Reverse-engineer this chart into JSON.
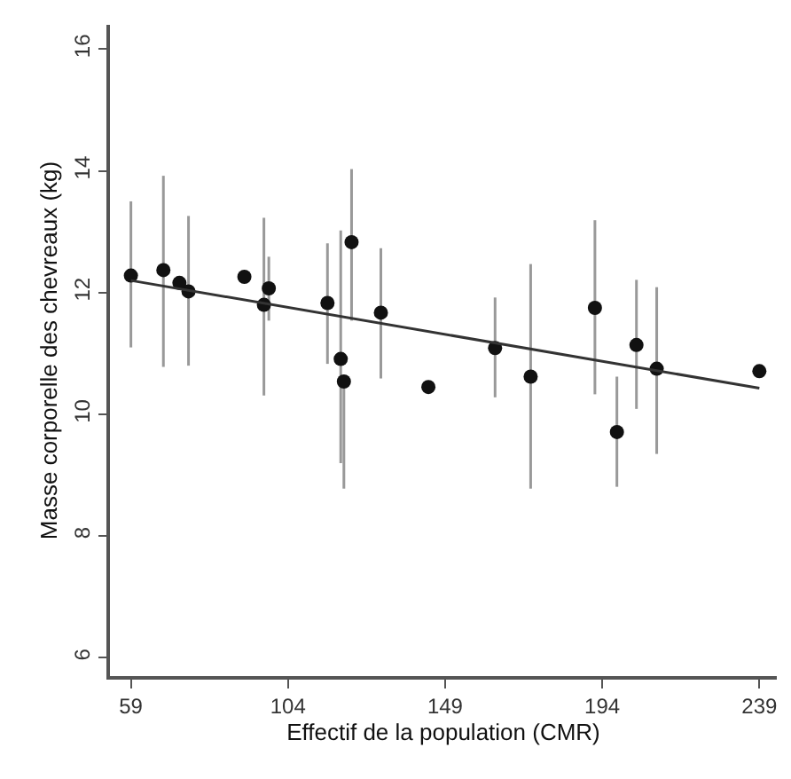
{
  "chart_data": {
    "type": "scatter",
    "xlabel": "Effectif de la population (CMR)",
    "ylabel": "Masse corporelle des chevreaux (kg)",
    "xlim": [
      53,
      244
    ],
    "ylim": [
      5.7,
      16.4
    ],
    "xticks": [
      59,
      104,
      149,
      194,
      239
    ],
    "yticks": [
      6,
      8,
      10,
      12,
      14,
      16
    ],
    "marker": "circle",
    "series": [
      {
        "color": "#111111",
        "x": [
          59,
          68.3,
          72.9,
          75.5,
          91.5,
          97.1,
          98.5,
          115.3,
          119.1,
          120,
          122.2,
          130.6,
          144.2,
          163.3,
          173.5,
          191.9,
          198.2,
          203.8,
          209.6,
          239
        ],
        "values": [
          12.28,
          12.37,
          12.16,
          12.02,
          12.26,
          11.8,
          12.07,
          11.83,
          10.91,
          10.54,
          12.83,
          11.67,
          10.45,
          11.09,
          10.62,
          11.75,
          9.71,
          11.14,
          10.75,
          10.71
        ],
        "errors": [
          [
            11.1,
            13.5
          ],
          [
            10.78,
            13.92
          ],
          null,
          [
            10.8,
            13.26
          ],
          null,
          [
            10.31,
            13.23
          ],
          [
            11.54,
            12.59
          ],
          [
            10.83,
            12.81
          ],
          [
            9.2,
            13.02
          ],
          [
            8.78,
            10.54
          ],
          [
            11.54,
            14.03
          ],
          [
            10.59,
            12.73
          ],
          null,
          [
            10.28,
            11.92
          ],
          [
            8.78,
            12.47
          ],
          [
            10.33,
            13.19
          ],
          [
            8.81,
            10.62
          ],
          [
            10.09,
            12.21
          ],
          [
            9.35,
            12.09
          ],
          null
        ]
      },
      {
        "type": "line",
        "marker": "none",
        "color": "#333333",
        "x": [
          59,
          239
        ],
        "values": [
          12.2,
          10.43
        ]
      }
    ]
  }
}
